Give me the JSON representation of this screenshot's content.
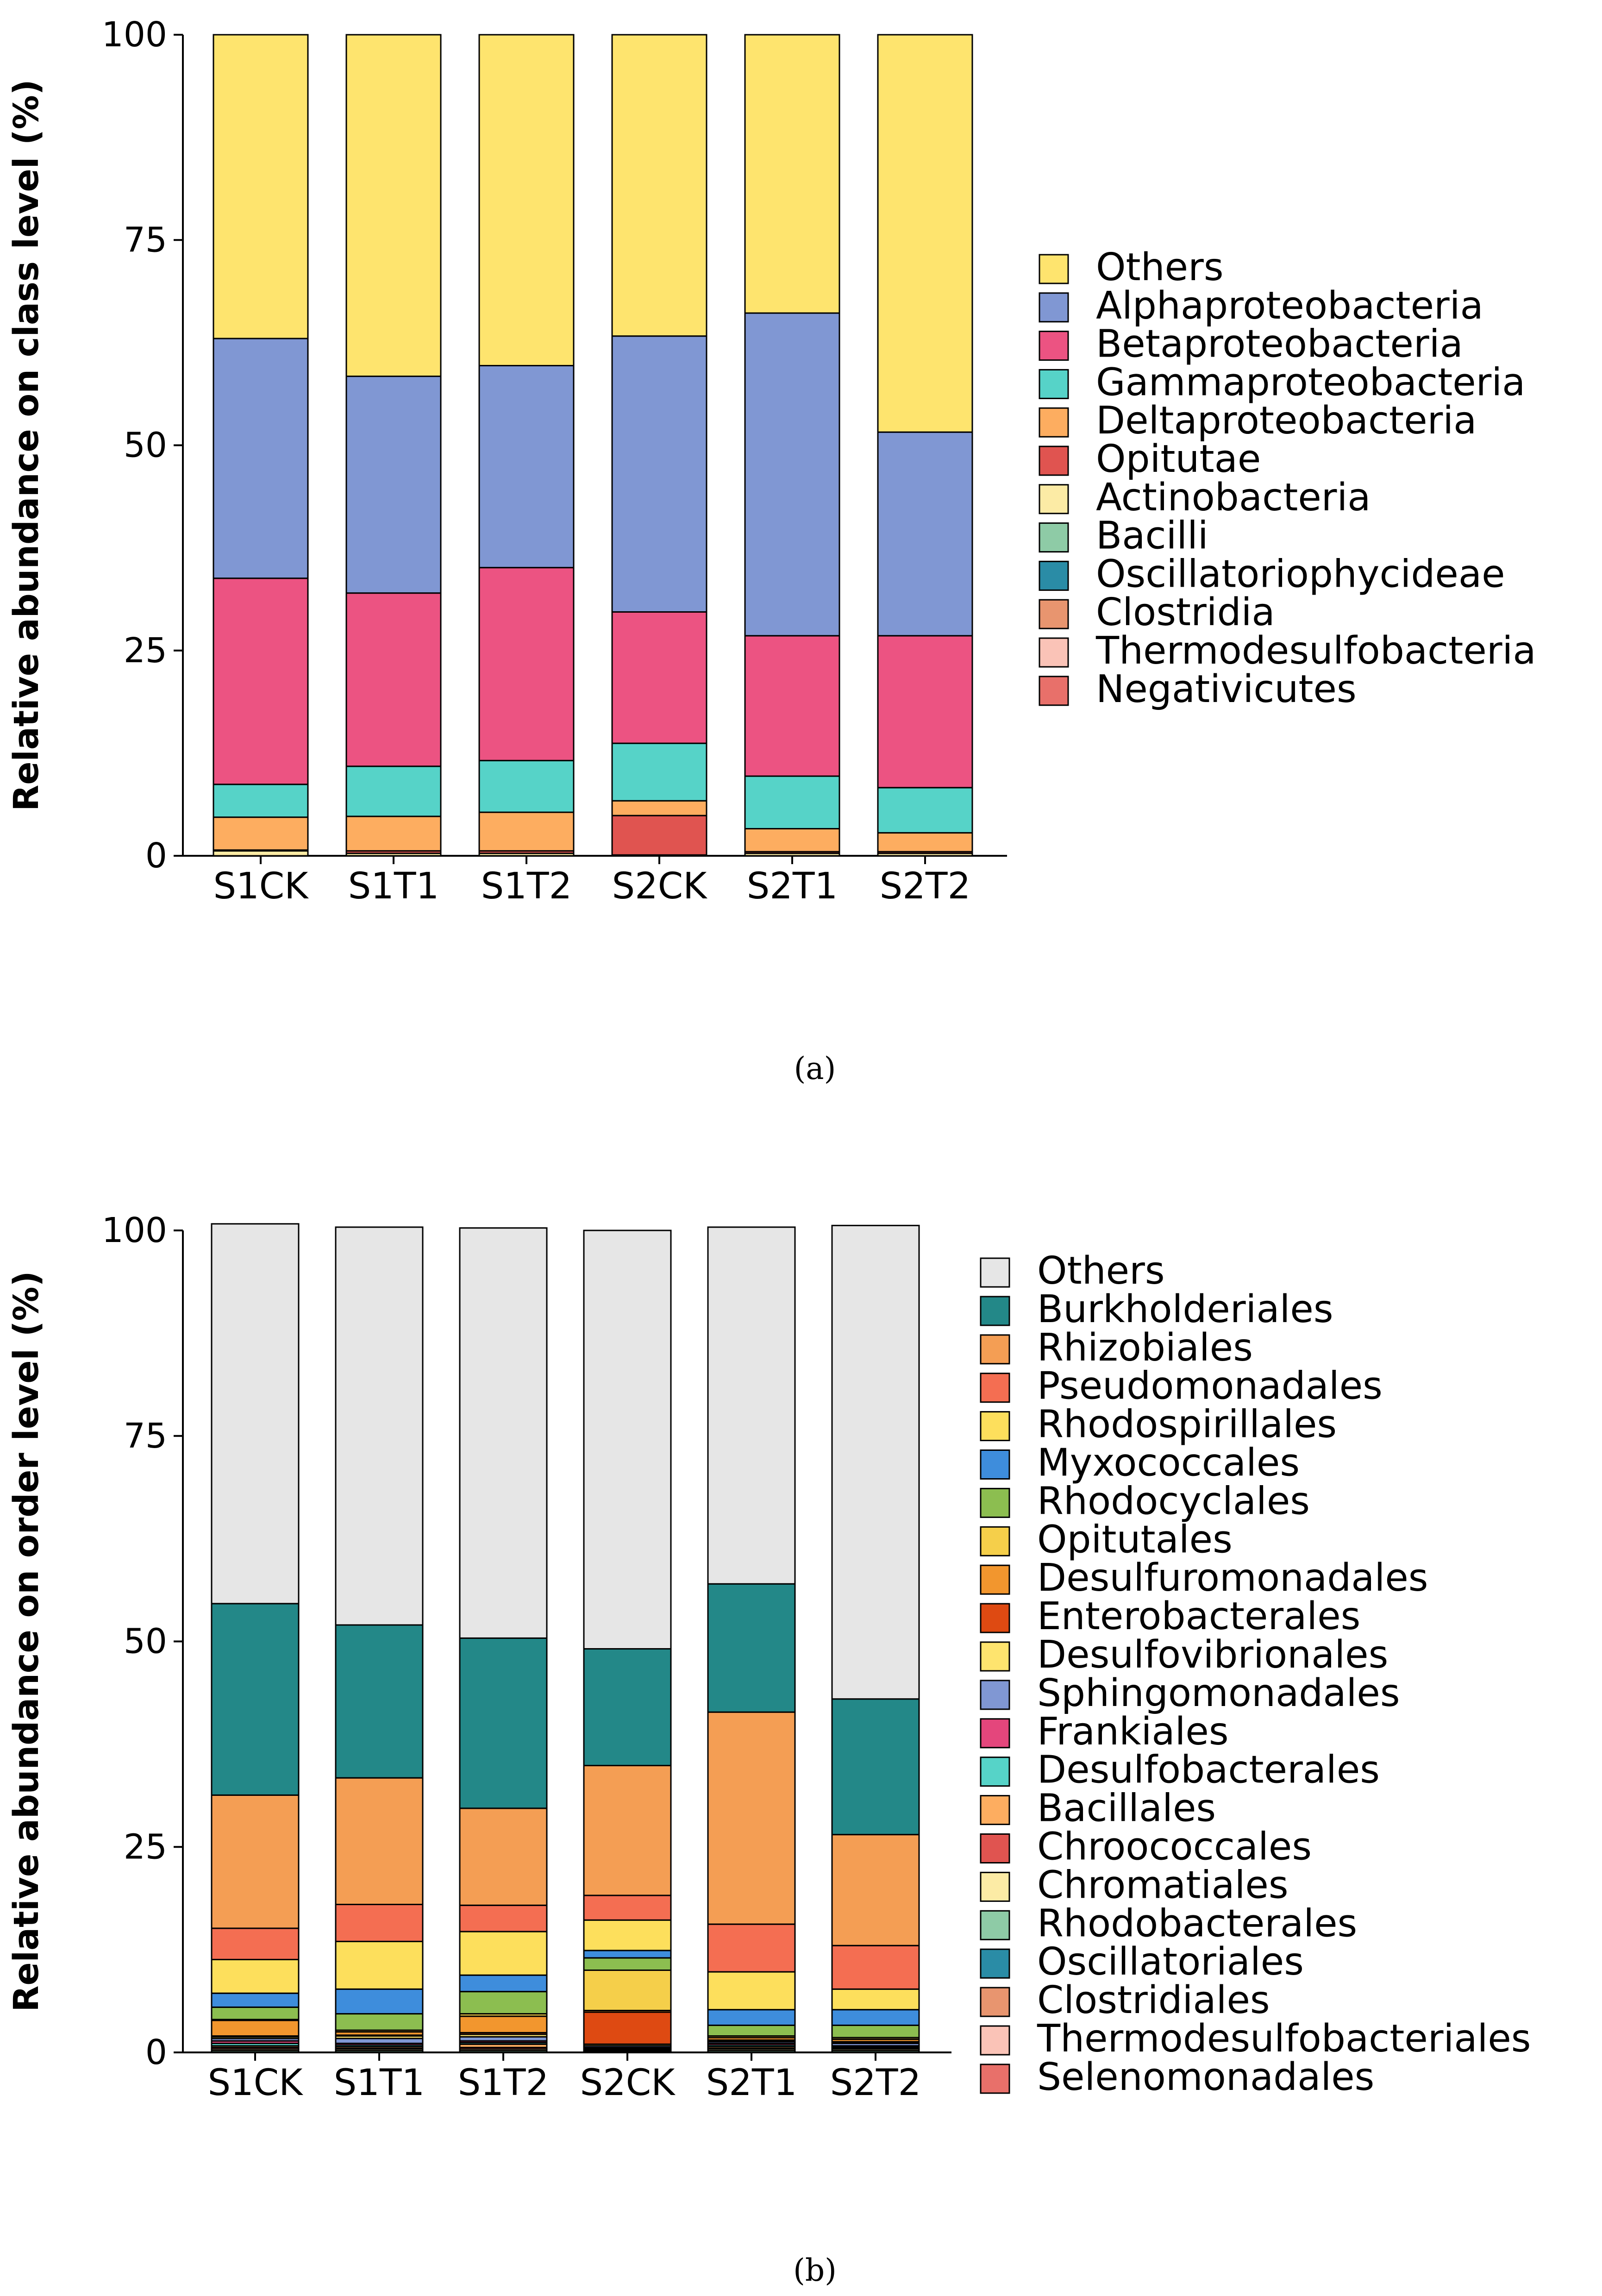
{
  "chart_data": [
    {
      "panel": "a",
      "panel_label_text": "(a)",
      "type": "bar",
      "stacked": true,
      "categories": [
        "S1CK",
        "S1T1",
        "S1T2",
        "S2CK",
        "S2T1",
        "S2T2"
      ],
      "ylabel": "Relative abundance on class level (%)",
      "xlabel": "",
      "ylim": [
        0,
        100
      ],
      "yticks": [
        0,
        25,
        50,
        75,
        100
      ],
      "legend_position": "right",
      "series": [
        {
          "name": "Negativicutes",
          "color": "#E8706A",
          "values": [
            0,
            0,
            0,
            0,
            0,
            0
          ]
        },
        {
          "name": "Thermodesulfobacteria",
          "color": "#FAC3B7",
          "values": [
            0,
            0,
            0,
            0,
            0,
            0
          ]
        },
        {
          "name": "Clostridia",
          "color": "#E8956F",
          "values": [
            0,
            0,
            0,
            0,
            0,
            0
          ]
        },
        {
          "name": "Oscillatoriophycideae",
          "color": "#2A8CA6",
          "values": [
            0,
            0,
            0,
            0,
            0,
            0
          ]
        },
        {
          "name": "Bacilli",
          "color": "#8ECBA6",
          "values": [
            0,
            0,
            0,
            0,
            0,
            0
          ]
        },
        {
          "name": "Actinobacteria",
          "color": "#FCEBA5",
          "values": [
            0.6,
            0.3,
            0.3,
            0.1,
            0.3,
            0.3
          ]
        },
        {
          "name": "Opitutae",
          "color": "#E05450",
          "values": [
            0.1,
            0.3,
            0.3,
            4.8,
            0.2,
            0.2
          ]
        },
        {
          "name": "Deltaproteobacteria",
          "color": "#FDAD60",
          "values": [
            4.0,
            4.2,
            4.7,
            1.8,
            2.8,
            2.3
          ]
        },
        {
          "name": "Gammaproteobacteria",
          "color": "#56D3C8",
          "values": [
            4.0,
            6.1,
            6.3,
            7.0,
            6.4,
            5.5
          ]
        },
        {
          "name": "Betaproteobacteria",
          "color": "#EC5382",
          "values": [
            25.1,
            21.1,
            23.5,
            16.0,
            17.1,
            18.5
          ]
        },
        {
          "name": "Alphaproteobacteria",
          "color": "#8097D3",
          "values": [
            29.2,
            26.4,
            24.6,
            33.6,
            39.3,
            24.8
          ]
        },
        {
          "name": "Others",
          "color": "#FEE46E",
          "values": [
            37.0,
            41.6,
            40.3,
            36.7,
            33.9,
            48.4
          ]
        }
      ],
      "legend_order": [
        "Others",
        "Alphaproteobacteria",
        "Betaproteobacteria",
        "Gammaproteobacteria",
        "Deltaproteobacteria",
        "Opitutae",
        "Actinobacteria",
        "Bacilli",
        "Oscillatoriophycideae",
        "Clostridia",
        "Thermodesulfobacteria",
        "Negativicutes"
      ]
    },
    {
      "panel": "b",
      "panel_label_text": "(b)",
      "type": "bar",
      "stacked": true,
      "categories": [
        "S1CK",
        "S1T1",
        "S1T2",
        "S2CK",
        "S2T1",
        "S2T2"
      ],
      "ylabel": "Relative abundance on order level (%)",
      "xlabel": "",
      "ylim": [
        0,
        100
      ],
      "yticks": [
        0,
        25,
        50,
        75,
        100
      ],
      "legend_position": "right",
      "series": [
        {
          "name": "Selenomonadales",
          "color": "#E8706A",
          "values": [
            0,
            0,
            0,
            0,
            0,
            0
          ]
        },
        {
          "name": "Thermodesulfobacteriales",
          "color": "#FAC3B7",
          "values": [
            0,
            0,
            0,
            0,
            0,
            0
          ]
        },
        {
          "name": "Clostridiales",
          "color": "#E8956F",
          "values": [
            0,
            0,
            0,
            0,
            0,
            0
          ]
        },
        {
          "name": "Oscillatoriales",
          "color": "#2A8CA6",
          "values": [
            0,
            0,
            0,
            0,
            0,
            0
          ]
        },
        {
          "name": "Rhodobacterales",
          "color": "#8ECBA6",
          "values": [
            0.2,
            0.2,
            0.2,
            0.1,
            0.2,
            0.2
          ]
        },
        {
          "name": "Chromatiales",
          "color": "#FCEBA5",
          "values": [
            0.2,
            0.2,
            0.2,
            0.1,
            0.2,
            0.2
          ]
        },
        {
          "name": "Chroococcales",
          "color": "#E05450",
          "values": [
            0.2,
            0.1,
            0.2,
            0.1,
            0.1,
            0.1
          ]
        },
        {
          "name": "Bacillales",
          "color": "#FDAD60",
          "values": [
            0.2,
            0.2,
            0.4,
            0.1,
            0.2,
            0.1
          ]
        },
        {
          "name": "Desulfobacterales",
          "color": "#56D3C8",
          "values": [
            0.3,
            0.2,
            0.2,
            0.1,
            0.2,
            0.1
          ]
        },
        {
          "name": "Frankiales",
          "color": "#E4467C",
          "values": [
            0.3,
            0.2,
            0.2,
            0.1,
            0.2,
            0.1
          ]
        },
        {
          "name": "Sphingomonadales",
          "color": "#8097D3",
          "values": [
            0.3,
            0.6,
            0.5,
            0.2,
            0.2,
            0.3
          ]
        },
        {
          "name": "Desulfovibrionales",
          "color": "#FEE46E",
          "values": [
            0.2,
            0.3,
            0.3,
            0.2,
            0.1,
            0.1
          ]
        },
        {
          "name": "Enterobacterales",
          "color": "#DE4A12",
          "values": [
            0.1,
            0.1,
            0.2,
            3.9,
            0.1,
            0.1
          ]
        },
        {
          "name": "Desulfuromonadales",
          "color": "#F2962E",
          "values": [
            1.9,
            0.4,
            2.0,
            0.2,
            0.3,
            0.3
          ]
        },
        {
          "name": "Opitutales",
          "color": "#F5CF4A",
          "values": [
            0.1,
            0.2,
            0.3,
            4.9,
            0.2,
            0.2
          ]
        },
        {
          "name": "Rhodocyclales",
          "color": "#8CBE50",
          "values": [
            1.5,
            2.0,
            2.7,
            1.5,
            1.3,
            1.5
          ]
        },
        {
          "name": "Myxococcales",
          "color": "#3E8DDC",
          "values": [
            1.7,
            3.0,
            2.0,
            0.9,
            1.9,
            1.9
          ]
        },
        {
          "name": "Rhodospirillales",
          "color": "#FDDF5C",
          "values": [
            4.1,
            5.8,
            5.3,
            3.7,
            4.6,
            2.5
          ]
        },
        {
          "name": "Pseudomonadales",
          "color": "#F46E52",
          "values": [
            3.8,
            4.5,
            3.2,
            3.0,
            5.8,
            5.3
          ]
        },
        {
          "name": "Rhizobiales",
          "color": "#F49E54",
          "values": [
            16.2,
            15.4,
            11.8,
            15.8,
            25.8,
            13.5
          ]
        },
        {
          "name": "Burkholderiales",
          "color": "#238888",
          "values": [
            23.3,
            18.6,
            20.7,
            14.2,
            15.6,
            16.5
          ]
        },
        {
          "name": "Others",
          "color": "#E6E6E6",
          "values": [
            46.2,
            48.4,
            49.9,
            50.9,
            43.4,
            57.6
          ]
        }
      ],
      "legend_order": [
        "Others",
        "Burkholderiales",
        "Rhizobiales",
        "Pseudomonadales",
        "Rhodospirillales",
        "Myxococcales",
        "Rhodocyclales",
        "Opitutales",
        "Desulfuromonadales",
        "Enterobacterales",
        "Desulfovibrionales",
        "Sphingomonadales",
        "Frankiales",
        "Desulfobacterales",
        "Bacillales",
        "Chroococcales",
        "Chromatiales",
        "Rhodobacterales",
        "Oscillatoriales",
        "Clostridiales",
        "Thermodesulfobacteriales",
        "Selenomonadales"
      ]
    }
  ]
}
